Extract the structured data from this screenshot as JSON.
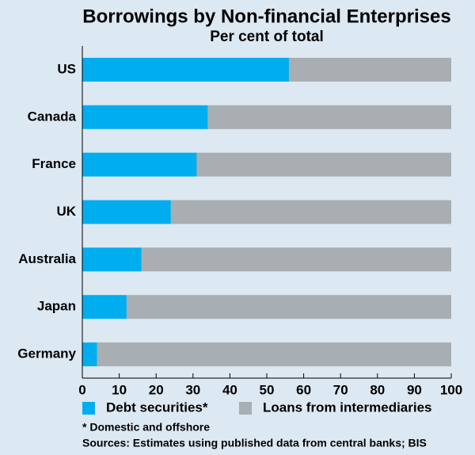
{
  "chart_data": {
    "type": "bar",
    "orientation": "horizontal",
    "stacked": true,
    "title": "Borrowings by Non-financial Enterprises",
    "subtitle": "Per cent of total",
    "categories": [
      "US",
      "Canada",
      "France",
      "UK",
      "Australia",
      "Japan",
      "Germany"
    ],
    "series": [
      {
        "name": "Debt securities*",
        "color": "#00aeef",
        "values": [
          56,
          34,
          31,
          24,
          16,
          12,
          4
        ]
      },
      {
        "name": "Loans from intermediaries",
        "color": "#a8aeb1",
        "values": [
          44,
          66,
          69,
          76,
          84,
          88,
          96
        ]
      }
    ],
    "xlim": [
      0,
      100
    ],
    "xticks": [
      0,
      10,
      20,
      30,
      40,
      50,
      60,
      70,
      80,
      90,
      100
    ],
    "grid": false,
    "legend": "bottom",
    "notes": [
      "*  Domestic and offshore",
      "Sources: Estimates using published data from central banks; BIS"
    ]
  }
}
